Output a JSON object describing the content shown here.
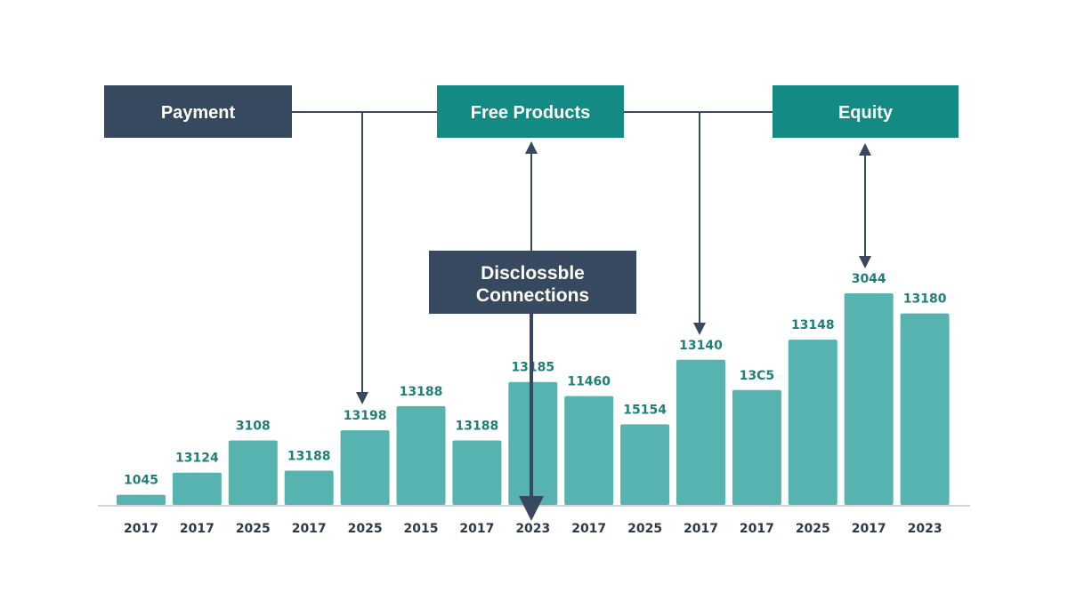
{
  "chart_data": {
    "type": "bar",
    "title": "",
    "xlabel": "",
    "ylabel": "",
    "categories": [
      "2017",
      "2017",
      "2025",
      "2017",
      "2025",
      "2015",
      "2017",
      "2023",
      "2017",
      "2025",
      "2017",
      "2017",
      "2025",
      "2017",
      "2023"
    ],
    "value_labels": [
      "1045",
      "13124",
      "3108",
      "13188",
      "13198",
      "13188",
      "13188",
      "13185",
      "11460",
      "15154",
      "13140",
      "13C5",
      "13148",
      "3044",
      "13180"
    ],
    "values": [
      5,
      16,
      32,
      17,
      37,
      49,
      32,
      61,
      54,
      40,
      72,
      57,
      82,
      105,
      95
    ],
    "ylim": [
      0,
      110
    ],
    "grid": false,
    "colors": {
      "bar": "#56b3b0",
      "label": "#1f7f78",
      "tick": "#2b3a4a"
    }
  },
  "connectors": {
    "payment": "Payment",
    "free_products": "Free Products",
    "equity": "Equity",
    "center_line1": "Disclossble",
    "center_line2": "Connections",
    "colors": {
      "dark": "#37495e",
      "teal": "#138a84",
      "line": "#37495e"
    }
  }
}
